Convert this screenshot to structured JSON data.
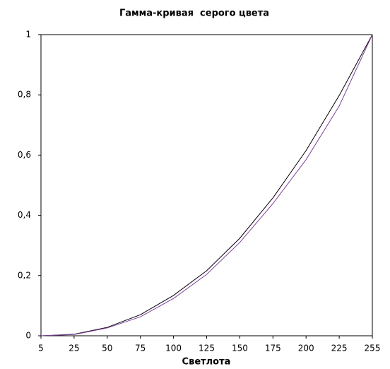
{
  "chart_data": {
    "type": "line",
    "title": "Гамма-кривая  серого цвета",
    "x_label": "Светлота",
    "categories": [
      "5",
      "25",
      "50",
      "75",
      "100",
      "125",
      "150",
      "175",
      "200",
      "225",
      "255"
    ],
    "series": [
      {
        "color": "#000000",
        "values": [
          0,
          0.005,
          0.028,
          0.07,
          0.134,
          0.216,
          0.324,
          0.458,
          0.615,
          0.798,
          1
        ]
      },
      {
        "color": "#8040a0",
        "values": [
          0,
          0.004,
          0.026,
          0.063,
          0.124,
          0.204,
          0.31,
          0.439,
          0.585,
          0.763,
          1
        ]
      }
    ],
    "ylim": [
      0,
      1
    ],
    "yticks": [
      0,
      {
        "value": 0.2,
        "label": "0,2"
      },
      {
        "value": 0.4,
        "label": "0,4"
      },
      {
        "value": 0.6,
        "label": "0,6"
      },
      {
        "value": 0.8,
        "label": "0,8"
      },
      1
    ]
  }
}
